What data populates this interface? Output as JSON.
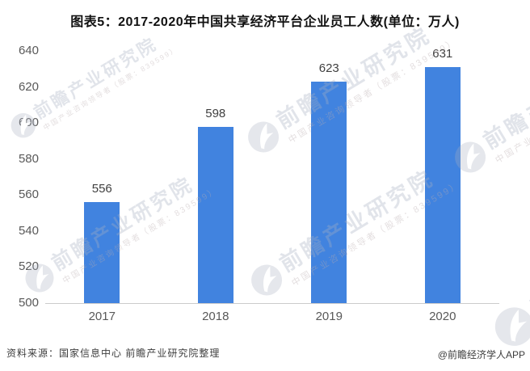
{
  "chart_data": {
    "type": "bar",
    "title": "图表5：2017-2020年中国共享经济平台企业员工人数(单位：万人)",
    "categories": [
      "2017",
      "2018",
      "2019",
      "2020"
    ],
    "values": [
      556,
      598,
      623,
      631
    ],
    "unit": "万人",
    "ylim": [
      500,
      640
    ],
    "yticks": [
      500,
      520,
      540,
      560,
      580,
      600,
      620,
      640
    ],
    "grid": false,
    "legend": "none",
    "bar_color": "#4183DF"
  },
  "footer": {
    "source": "资料来源：国家信息中心 前瞻产业研究院整理",
    "credit": "@前瞻经济学人APP"
  },
  "watermark": {
    "main": "前瞻产业研究院",
    "sub": "中国产业咨询领导者（股票：839599）"
  },
  "colors": {
    "bar": "#4183DF",
    "axis_line": "#cccccc",
    "tick_label": "#595959",
    "value_label": "#3f3f3f",
    "title": "#111111",
    "watermark": "rgba(168,177,192,0.34)"
  }
}
